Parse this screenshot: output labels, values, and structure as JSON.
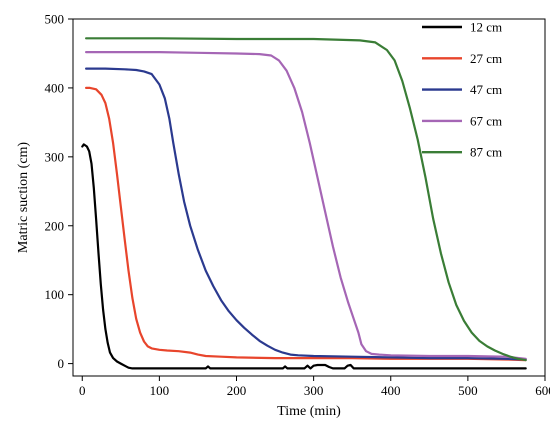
{
  "chart_data": {
    "type": "line",
    "xlabel": "Time (min)",
    "ylabel": "Matric suction (cm)",
    "xlim": [
      -12,
      600
    ],
    "ylim": [
      -18,
      500
    ],
    "xticks": [
      0,
      100,
      200,
      300,
      400,
      500,
      600
    ],
    "yticks": [
      0,
      100,
      200,
      300,
      400,
      500
    ],
    "grid": false,
    "legend_position": "top-right",
    "series": [
      {
        "name": "12 cm",
        "color": "#000000",
        "points": [
          [
            0,
            315
          ],
          [
            2,
            318
          ],
          [
            6,
            315
          ],
          [
            9,
            308
          ],
          [
            12,
            290
          ],
          [
            15,
            255
          ],
          [
            18,
            210
          ],
          [
            21,
            160
          ],
          [
            24,
            115
          ],
          [
            27,
            78
          ],
          [
            30,
            50
          ],
          [
            33,
            30
          ],
          [
            36,
            16
          ],
          [
            40,
            8
          ],
          [
            45,
            3
          ],
          [
            50,
            0
          ],
          [
            55,
            -3
          ],
          [
            60,
            -6
          ],
          [
            65,
            -7
          ],
          [
            70,
            -7
          ],
          [
            100,
            -7
          ],
          [
            150,
            -7
          ],
          [
            160,
            -7
          ],
          [
            163,
            -4
          ],
          [
            166,
            -7
          ],
          [
            200,
            -7
          ],
          [
            260,
            -7
          ],
          [
            263,
            -4
          ],
          [
            266,
            -7
          ],
          [
            288,
            -7
          ],
          [
            292,
            -3
          ],
          [
            296,
            -7
          ],
          [
            300,
            -3
          ],
          [
            305,
            -2
          ],
          [
            315,
            -2
          ],
          [
            320,
            -5
          ],
          [
            325,
            -7
          ],
          [
            340,
            -7
          ],
          [
            344,
            -3
          ],
          [
            348,
            -2
          ],
          [
            352,
            -7
          ],
          [
            400,
            -7
          ],
          [
            500,
            -7
          ],
          [
            575,
            -7
          ]
        ]
      },
      {
        "name": "27 cm",
        "color": "#e8452c",
        "points": [
          [
            5,
            400
          ],
          [
            10,
            400
          ],
          [
            18,
            398
          ],
          [
            25,
            390
          ],
          [
            30,
            378
          ],
          [
            35,
            355
          ],
          [
            40,
            320
          ],
          [
            45,
            275
          ],
          [
            50,
            228
          ],
          [
            55,
            180
          ],
          [
            60,
            135
          ],
          [
            65,
            95
          ],
          [
            70,
            65
          ],
          [
            75,
            45
          ],
          [
            80,
            32
          ],
          [
            85,
            25
          ],
          [
            90,
            22
          ],
          [
            100,
            20
          ],
          [
            110,
            19
          ],
          [
            125,
            18
          ],
          [
            140,
            16
          ],
          [
            150,
            13
          ],
          [
            160,
            11
          ],
          [
            180,
            10
          ],
          [
            200,
            9
          ],
          [
            250,
            8
          ],
          [
            300,
            8
          ],
          [
            350,
            8
          ],
          [
            400,
            7
          ],
          [
            450,
            7
          ],
          [
            500,
            7
          ],
          [
            550,
            6
          ],
          [
            575,
            5
          ]
        ]
      },
      {
        "name": "47 cm",
        "color": "#2b3a8f",
        "points": [
          [
            5,
            428
          ],
          [
            30,
            428
          ],
          [
            55,
            427
          ],
          [
            70,
            426
          ],
          [
            80,
            424
          ],
          [
            90,
            420
          ],
          [
            100,
            405
          ],
          [
            107,
            385
          ],
          [
            113,
            355
          ],
          [
            118,
            320
          ],
          [
            125,
            275
          ],
          [
            132,
            235
          ],
          [
            140,
            200
          ],
          [
            150,
            165
          ],
          [
            160,
            135
          ],
          [
            170,
            112
          ],
          [
            180,
            92
          ],
          [
            190,
            76
          ],
          [
            200,
            63
          ],
          [
            210,
            52
          ],
          [
            220,
            42
          ],
          [
            230,
            33
          ],
          [
            240,
            26
          ],
          [
            250,
            20
          ],
          [
            260,
            16
          ],
          [
            270,
            13
          ],
          [
            280,
            12
          ],
          [
            300,
            11
          ],
          [
            350,
            10
          ],
          [
            400,
            9
          ],
          [
            450,
            8
          ],
          [
            500,
            8
          ],
          [
            550,
            7
          ],
          [
            575,
            6
          ]
        ]
      },
      {
        "name": "67 cm",
        "color": "#a566b5",
        "points": [
          [
            5,
            452
          ],
          [
            50,
            452
          ],
          [
            100,
            452
          ],
          [
            150,
            451
          ],
          [
            200,
            450
          ],
          [
            230,
            449
          ],
          [
            245,
            447
          ],
          [
            255,
            440
          ],
          [
            265,
            425
          ],
          [
            275,
            400
          ],
          [
            285,
            365
          ],
          [
            295,
            320
          ],
          [
            305,
            270
          ],
          [
            315,
            220
          ],
          [
            325,
            170
          ],
          [
            335,
            125
          ],
          [
            345,
            88
          ],
          [
            352,
            65
          ],
          [
            358,
            45
          ],
          [
            362,
            28
          ],
          [
            368,
            18
          ],
          [
            375,
            14
          ],
          [
            385,
            13
          ],
          [
            400,
            12
          ],
          [
            450,
            11
          ],
          [
            500,
            11
          ],
          [
            550,
            10
          ],
          [
            575,
            7
          ]
        ]
      },
      {
        "name": "87 cm",
        "color": "#3a7d36",
        "points": [
          [
            5,
            472
          ],
          [
            100,
            472
          ],
          [
            200,
            471
          ],
          [
            300,
            471
          ],
          [
            360,
            469
          ],
          [
            380,
            466
          ],
          [
            395,
            455
          ],
          [
            405,
            440
          ],
          [
            415,
            410
          ],
          [
            425,
            370
          ],
          [
            435,
            325
          ],
          [
            445,
            270
          ],
          [
            455,
            210
          ],
          [
            465,
            160
          ],
          [
            475,
            118
          ],
          [
            485,
            85
          ],
          [
            495,
            62
          ],
          [
            505,
            45
          ],
          [
            515,
            33
          ],
          [
            525,
            25
          ],
          [
            535,
            19
          ],
          [
            545,
            14
          ],
          [
            555,
            10
          ],
          [
            565,
            7
          ],
          [
            575,
            5
          ]
        ]
      }
    ]
  }
}
